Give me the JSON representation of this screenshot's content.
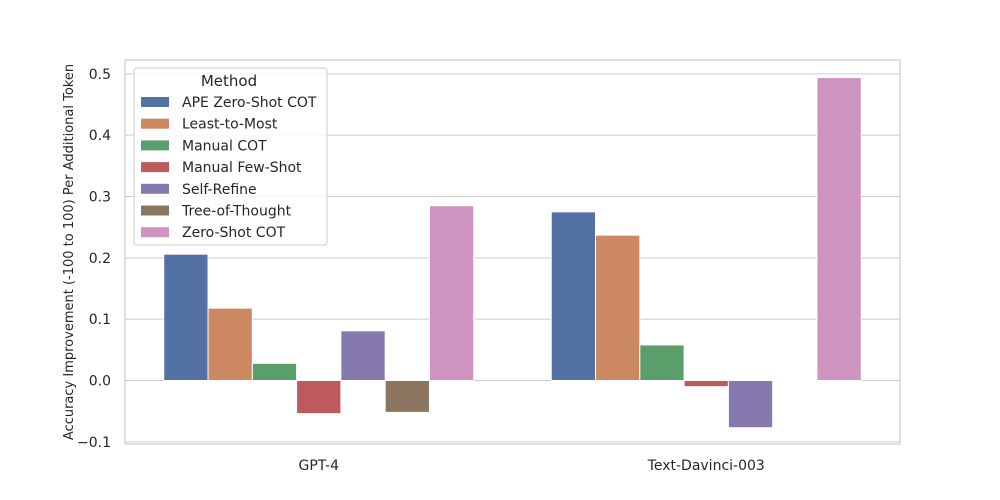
{
  "chart_data": {
    "type": "bar",
    "categories": [
      "GPT-4",
      "Text-Davinci-003"
    ],
    "series": [
      {
        "name": "APE Zero-Shot COT",
        "color": "#5471a5",
        "values": [
          0.206,
          0.275
        ]
      },
      {
        "name": "Least-to-Most",
        "color": "#cc8860",
        "values": [
          0.118,
          0.237
        ]
      },
      {
        "name": "Manual COT",
        "color": "#5c9e6b",
        "values": [
          0.028,
          0.058
        ]
      },
      {
        "name": "Manual Few-Shot",
        "color": "#bc5a5e",
        "values": [
          -0.054,
          -0.01
        ]
      },
      {
        "name": "Self-Refine",
        "color": "#8679ae",
        "values": [
          0.081,
          -0.077
        ]
      },
      {
        "name": "Tree-of-Thought",
        "color": "#8b7560",
        "values": [
          -0.052,
          0.0
        ]
      },
      {
        "name": "Zero-Shot COT",
        "color": "#cf93c0",
        "values": [
          0.285,
          0.494
        ]
      }
    ],
    "ylabel": "Accuracy Improvement (-100 to 100) Per Additional Token",
    "xlabel": "",
    "ylim": [
      -0.1,
      0.5
    ],
    "yticks": [
      "−0.1",
      "0.0",
      "0.1",
      "0.2",
      "0.3",
      "0.4",
      "0.5"
    ],
    "grid": true,
    "legend": {
      "title": "Method",
      "position": "top-left"
    }
  }
}
